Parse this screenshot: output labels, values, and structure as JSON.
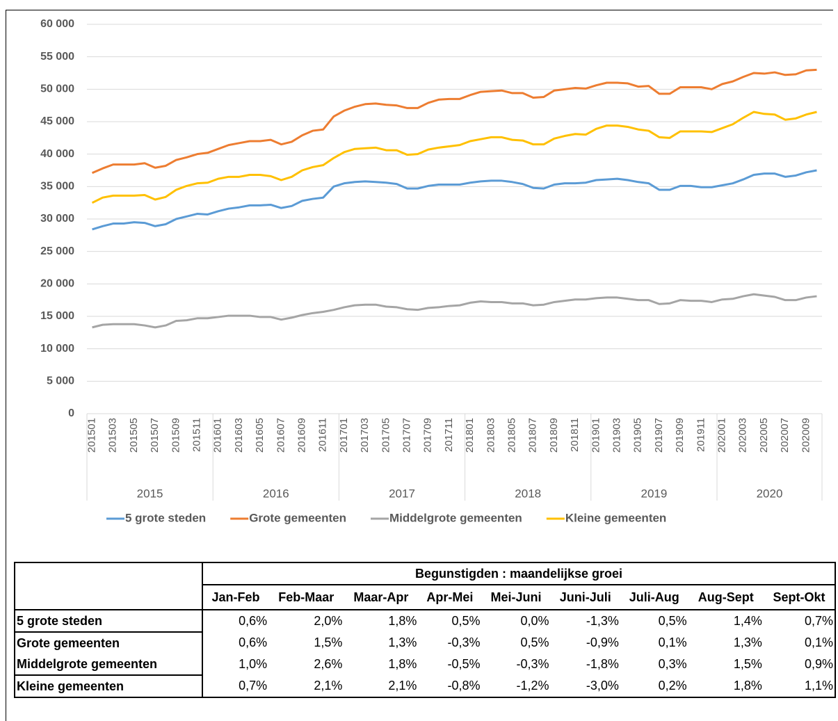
{
  "chart_data": {
    "type": "line",
    "categories": [
      "201501",
      null,
      "201503",
      null,
      "201505",
      null,
      "201507",
      null,
      "201509",
      null,
      "201511",
      null,
      "201601",
      null,
      "201603",
      null,
      "201605",
      null,
      "201607",
      null,
      "201609",
      null,
      "201611",
      null,
      "201701",
      null,
      "201703",
      null,
      "201705",
      null,
      "201707",
      null,
      "201709",
      null,
      "201711",
      null,
      "201801",
      null,
      "201803",
      null,
      "201805",
      null,
      "201807",
      null,
      "201809",
      null,
      "201811",
      null,
      "201901",
      null,
      "201903",
      null,
      "201905",
      null,
      "201907",
      null,
      "201909",
      null,
      "201911",
      null,
      "202001",
      null,
      "202003",
      null,
      "202005",
      null,
      "202007",
      null,
      "202009",
      null
    ],
    "x_groups": [
      "2015",
      "2016",
      "2017",
      "2018",
      "2019",
      "2020"
    ],
    "series": [
      {
        "name": "5 grote steden",
        "color": "#5b9bd5",
        "values": [
          28400,
          28900,
          29300,
          29300,
          29500,
          29400,
          28900,
          29200,
          30000,
          30400,
          30800,
          30700,
          31200,
          31600,
          31800,
          32100,
          32100,
          32200,
          31700,
          32000,
          32800,
          33100,
          33300,
          35000,
          35500,
          35700,
          35800,
          35700,
          35600,
          35400,
          34700,
          34700,
          35100,
          35300,
          35300,
          35300,
          35600,
          35800,
          35900,
          35900,
          35700,
          35400,
          34800,
          34700,
          35300,
          35500,
          35500,
          35600,
          36000,
          36100,
          36200,
          36000,
          35700,
          35500,
          34500,
          34500,
          35100,
          35100,
          34900,
          34900,
          35200,
          35500,
          36100,
          36800,
          37000,
          37000,
          36500,
          36700,
          37200,
          37500
        ]
      },
      {
        "name": "Grote gemeenten",
        "color": "#ed7d31",
        "values": [
          37100,
          37800,
          38400,
          38400,
          38400,
          38600,
          37900,
          38200,
          39100,
          39500,
          40000,
          40200,
          40800,
          41400,
          41700,
          42000,
          42000,
          42200,
          41500,
          41900,
          42900,
          43600,
          43800,
          45800,
          46700,
          47300,
          47700,
          47800,
          47600,
          47500,
          47100,
          47100,
          47900,
          48400,
          48500,
          48500,
          49100,
          49600,
          49700,
          49800,
          49400,
          49400,
          48700,
          48800,
          49800,
          50000,
          50200,
          50100,
          50600,
          51000,
          51000,
          50900,
          50400,
          50500,
          49300,
          49300,
          50300,
          50300,
          50300,
          50000,
          50800,
          51200,
          51900,
          52500,
          52400,
          52600,
          52200,
          52300,
          52900,
          53000
        ]
      },
      {
        "name": "Middelgrote gemeenten",
        "color": "#a5a5a5",
        "values": [
          13300,
          13700,
          13800,
          13800,
          13800,
          13600,
          13300,
          13600,
          14300,
          14400,
          14700,
          14700,
          14900,
          15100,
          15100,
          15100,
          14900,
          14900,
          14500,
          14800,
          15200,
          15500,
          15700,
          16000,
          16400,
          16700,
          16800,
          16800,
          16500,
          16400,
          16100,
          16000,
          16300,
          16400,
          16600,
          16700,
          17100,
          17300,
          17200,
          17200,
          17000,
          17000,
          16700,
          16800,
          17200,
          17400,
          17600,
          17600,
          17800,
          17900,
          17900,
          17700,
          17500,
          17500,
          16900,
          17000,
          17500,
          17400,
          17400,
          17200,
          17600,
          17700,
          18100,
          18400,
          18200,
          18000,
          17500,
          17500,
          17900,
          18100
        ]
      },
      {
        "name": "Kleine gemeenten",
        "color": "#ffc000",
        "values": [
          32500,
          33300,
          33600,
          33600,
          33600,
          33700,
          33000,
          33400,
          34500,
          35100,
          35500,
          35600,
          36200,
          36500,
          36500,
          36800,
          36800,
          36600,
          36000,
          36500,
          37500,
          38000,
          38300,
          39400,
          40300,
          40800,
          40900,
          41000,
          40600,
          40600,
          39900,
          40000,
          40700,
          41000,
          41200,
          41400,
          42000,
          42300,
          42600,
          42600,
          42200,
          42100,
          41500,
          41500,
          42400,
          42800,
          43100,
          43000,
          43900,
          44400,
          44400,
          44200,
          43800,
          43600,
          42600,
          42500,
          43500,
          43500,
          43500,
          43400,
          44000,
          44600,
          45600,
          46500,
          46200,
          46100,
          45300,
          45500,
          46100,
          46500
        ]
      }
    ],
    "ylim": [
      0,
      60000
    ],
    "yticks": [
      0,
      {
        "value": 5000,
        "label": "5 000"
      },
      {
        "value": 10000,
        "label": "10 000"
      },
      {
        "value": 15000,
        "label": "15 000"
      },
      {
        "value": 20000,
        "label": "20 000"
      },
      {
        "value": 25000,
        "label": "25 000"
      },
      {
        "value": 30000,
        "label": "30 000"
      },
      {
        "value": 35000,
        "label": "35 000"
      },
      {
        "value": 40000,
        "label": "40 000"
      },
      {
        "value": 45000,
        "label": "45 000"
      },
      {
        "value": 50000,
        "label": "50 000"
      },
      {
        "value": 55000,
        "label": "55 000"
      },
      {
        "value": 60000,
        "label": "60 000"
      }
    ],
    "grid": true,
    "legend": "bottom"
  },
  "table": {
    "title": "Begunstigden : maandelijkse groei",
    "columns": [
      "Jan-Feb",
      "Feb-Maar",
      "Maar-Apr",
      "Apr-Mei",
      "Mei-Juni",
      "Juni-Juli",
      "Juli-Aug",
      "Aug-Sept",
      "Sept-Okt"
    ],
    "rows": [
      {
        "label": "5 grote steden",
        "cells": [
          "0,6%",
          "2,0%",
          "1,8%",
          "0,5%",
          "0,0%",
          "-1,3%",
          "0,5%",
          "1,4%",
          "0,7%"
        ]
      },
      {
        "label": "Grote gemeenten",
        "cells": [
          "0,6%",
          "1,5%",
          "1,3%",
          "-0,3%",
          "0,5%",
          "-0,9%",
          "0,1%",
          "1,3%",
          "0,1%"
        ]
      },
      {
        "label": "Middelgrote gemeenten",
        "cells": [
          "1,0%",
          "2,6%",
          "1,8%",
          "-0,5%",
          "-0,3%",
          "-1,8%",
          "0,3%",
          "1,5%",
          "0,9%"
        ]
      },
      {
        "label": "Kleine gemeenten",
        "cells": [
          "0,7%",
          "2,1%",
          "2,1%",
          "-0,8%",
          "-1,2%",
          "-3,0%",
          "0,2%",
          "1,8%",
          "1,1%"
        ]
      }
    ]
  }
}
